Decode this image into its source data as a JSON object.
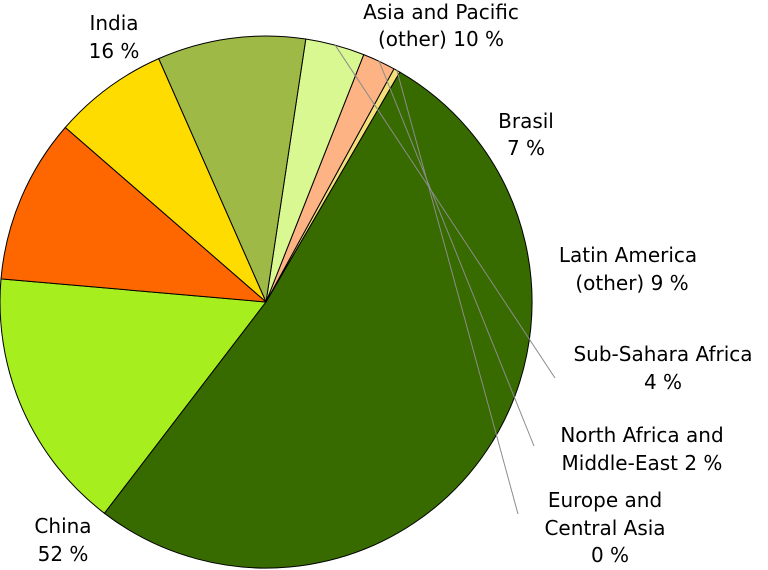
{
  "chart_data": {
    "type": "pie",
    "title": "",
    "start_angle_deg": 175,
    "direction": "counterclockwise",
    "slices": [
      {
        "id": "india",
        "label_lines": [
          "India",
          "16 %"
        ],
        "value": 16,
        "color": "#a6ee1e"
      },
      {
        "id": "china",
        "label_lines": [
          "China",
          "52 %"
        ],
        "value": 52,
        "color": "#376b00"
      },
      {
        "id": "europe-central-asia",
        "label_lines": [
          "Europe and",
          "Central Asia",
          "0 %"
        ],
        "value": 0.4,
        "color": "#f3e07a"
      },
      {
        "id": "north-africa-middle-east",
        "label_lines": [
          "North Africa and",
          "Middle-East 2 %"
        ],
        "value": 2,
        "color": "#fdb383"
      },
      {
        "id": "sub-sahara-africa",
        "label_lines": [
          "Sub-Sahara Africa",
          "4 %"
        ],
        "value": 3.6,
        "color": "#d9f891"
      },
      {
        "id": "latin-america-other",
        "label_lines": [
          "Latin America",
          "(other) 9 %"
        ],
        "value": 9,
        "color": "#9fb947"
      },
      {
        "id": "brasil",
        "label_lines": [
          "Brasil",
          "7 %"
        ],
        "value": 7,
        "color": "#fedc00"
      },
      {
        "id": "asia-pacific-other",
        "label_lines": [
          "Asia and Pacific",
          "(other) 10 %"
        ],
        "value": 10,
        "color": "#fe6700"
      }
    ]
  }
}
